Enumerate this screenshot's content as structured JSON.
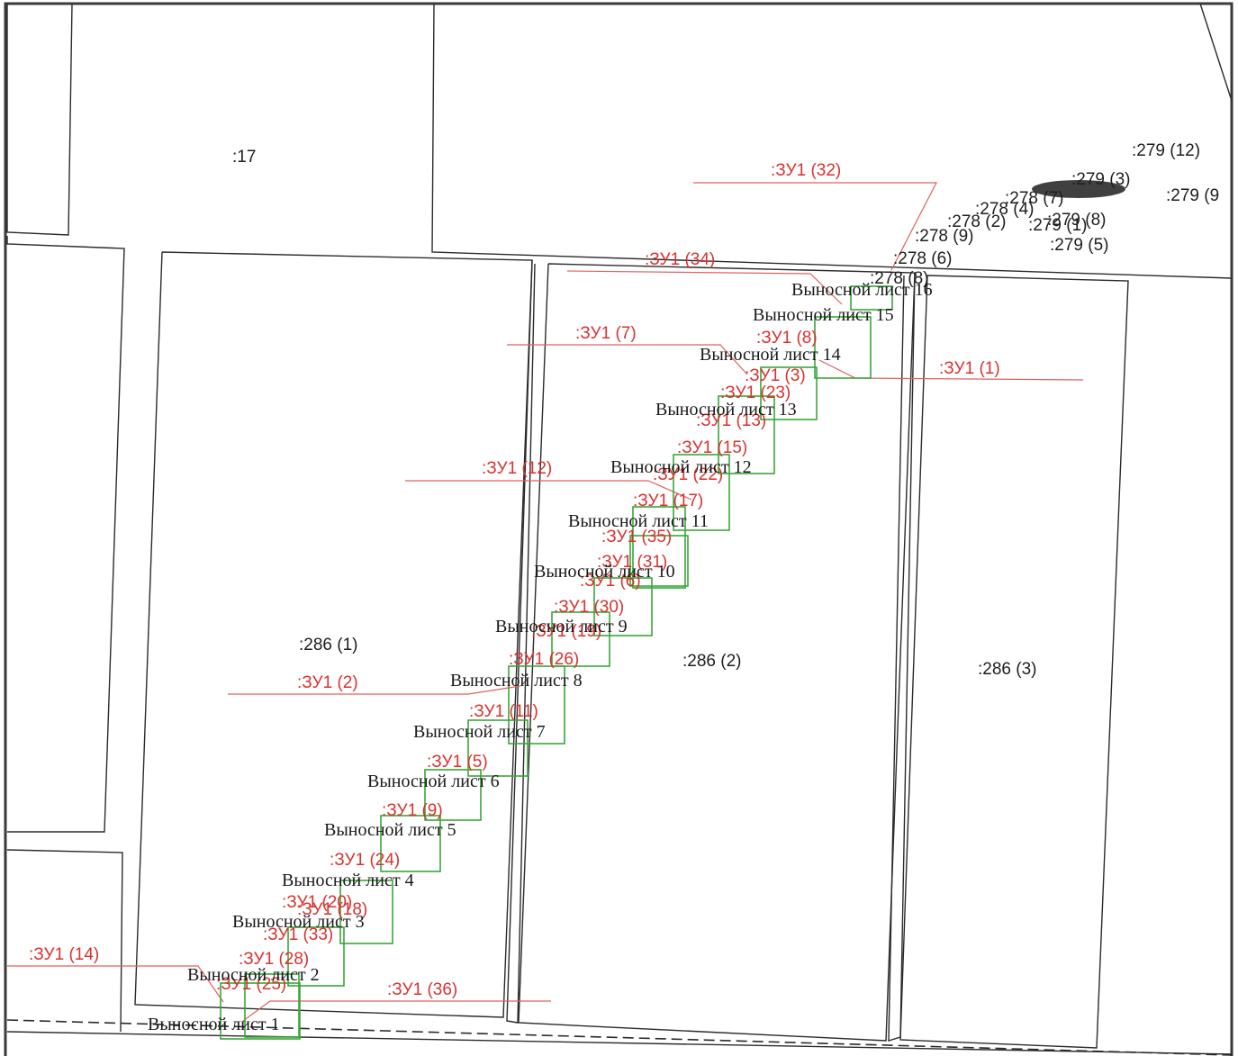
{
  "parcel_labels": [
    ":17",
    ":286 (1)",
    ":286 (2)",
    ":286 (3)",
    ":279 (12)",
    ":279 (9",
    ":278 (9)",
    ":278 (2)",
    ":278 (4)",
    ":279 (8)",
    ":279 (5)",
    ":278 (6)",
    ":278 (8)",
    ":278 (7)",
    ":279 (1)",
    ":279 (3)"
  ],
  "zu_labels": [
    ":ЗУ1 (32)",
    ":ЗУ1 (34)",
    ":ЗУ1 (7)",
    ":ЗУ1 (1)",
    ":ЗУ1 (8)",
    ":ЗУ1 (3)",
    ":ЗУ1 (23)",
    ":ЗУ1 (13)",
    ":ЗУ1 (15)",
    ":ЗУ1 (12)",
    ":ЗУ1 (22)",
    ":ЗУ1 (17)",
    ":ЗУ1 (35)",
    ":ЗУ1 (31)",
    ":ЗУ1 (6)",
    ":ЗУ1 (30)",
    ":ЗУ1 (19)",
    ":ЗУ1 (26)",
    ":ЗУ1 (2)",
    ":ЗУ1 (11)",
    ":ЗУ1 (5)",
    ":ЗУ1 (9)",
    ":ЗУ1 (24)",
    ":ЗУ1 (20)",
    ":ЗУ1 (18)",
    ":ЗУ1 (33)",
    ":ЗУ1 (28)",
    ":ЗУ1 (25)",
    ":ЗУ1 (14)",
    ":ЗУ1 (36)"
  ],
  "sheet_labels": [
    "Выносной лист 1",
    "Выносной лист 2",
    "Выносной лист 3",
    "Выносной лист 4",
    "Выносной лист 5",
    "Выносной лист 6",
    "Выносной лист 7",
    "Выносной лист 8",
    "Выносной лист 9",
    "Выносной лист 10",
    "Выносной лист 11",
    "Выносной лист 12",
    "Выносной лист 13",
    "Выносной лист 14",
    "Выносной лист 15",
    "Выносной лист 16"
  ],
  "colors": {
    "parcel_line": "#2b2b2b",
    "zu_label": "#d9322f",
    "leader_line": "#e06060",
    "sheet_frame": "#3aa63a"
  }
}
